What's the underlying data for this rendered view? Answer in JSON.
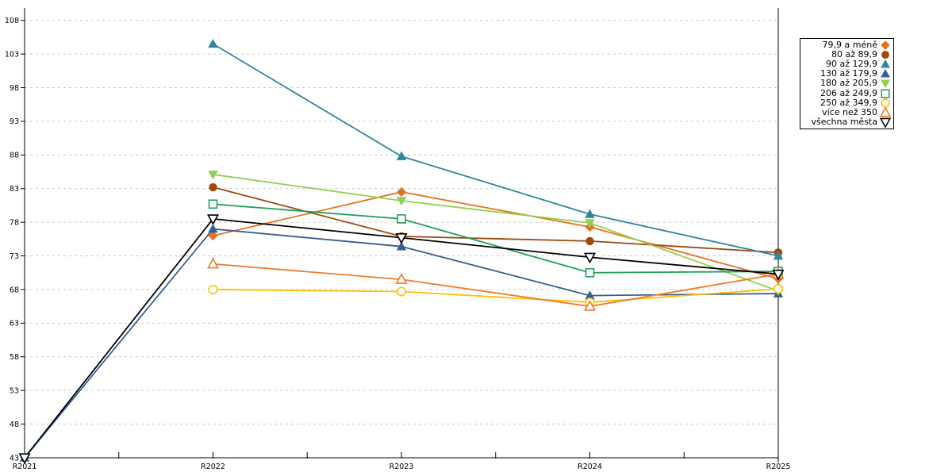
{
  "chart_data": {
    "type": "line",
    "categories": [
      "R2021",
      "R2022",
      "R2023",
      "R2024",
      "R2025"
    ],
    "series": [
      {
        "name": "79,9 a méně",
        "color": "#E8711C",
        "marker": "diamond",
        "fill": "solid",
        "values": [
          null,
          76.0,
          82.5,
          77.3,
          69.6
        ]
      },
      {
        "name": "80 až 89,9",
        "color": "#9C4A0F",
        "marker": "circle",
        "fill": "solid",
        "values": [
          null,
          83.2,
          75.9,
          75.2,
          73.5
        ]
      },
      {
        "name": "90 až 129,9",
        "color": "#31859C",
        "marker": "triangle-up",
        "fill": "solid",
        "values": [
          null,
          104.5,
          87.8,
          79.2,
          73.0
        ]
      },
      {
        "name": "130 až 179,9",
        "color": "#366092",
        "marker": "triangle-up",
        "fill": "solid",
        "values": [
          43,
          77.0,
          74.4,
          67.1,
          67.4
        ]
      },
      {
        "name": "180 až 205,9",
        "color": "#92D050",
        "marker": "triangle-down",
        "fill": "solid",
        "values": [
          null,
          85.1,
          81.2,
          77.9,
          67.8
        ]
      },
      {
        "name": "206 až 249,9",
        "color": "#1FA05A",
        "marker": "square",
        "fill": "open",
        "values": [
          null,
          80.7,
          78.5,
          70.5,
          70.7
        ]
      },
      {
        "name": "250 až 349,9",
        "color": "#FFC000",
        "marker": "circle",
        "fill": "open",
        "values": [
          null,
          68.0,
          67.7,
          66.1,
          68.1
        ]
      },
      {
        "name": "více než 350",
        "color": "#F07B28",
        "marker": "triangle-up",
        "fill": "open",
        "values": [
          null,
          71.8,
          69.5,
          65.5,
          70.3
        ]
      },
      {
        "name": "všechna města",
        "color": "#000000",
        "marker": "triangle-down",
        "fill": "open",
        "values": [
          43,
          78.5,
          75.7,
          72.8,
          70.3
        ]
      }
    ],
    "yticks": [
      43,
      48,
      53,
      58,
      63,
      68,
      73,
      78,
      83,
      88,
      93,
      98,
      103,
      108
    ],
    "ylim": [
      43,
      108
    ],
    "grid": "horizontal-dashed",
    "grid_color": "#C8C8C8",
    "axis_color": "#000000",
    "legend_position": "right",
    "title": "",
    "xlabel": "",
    "ylabel": ""
  }
}
